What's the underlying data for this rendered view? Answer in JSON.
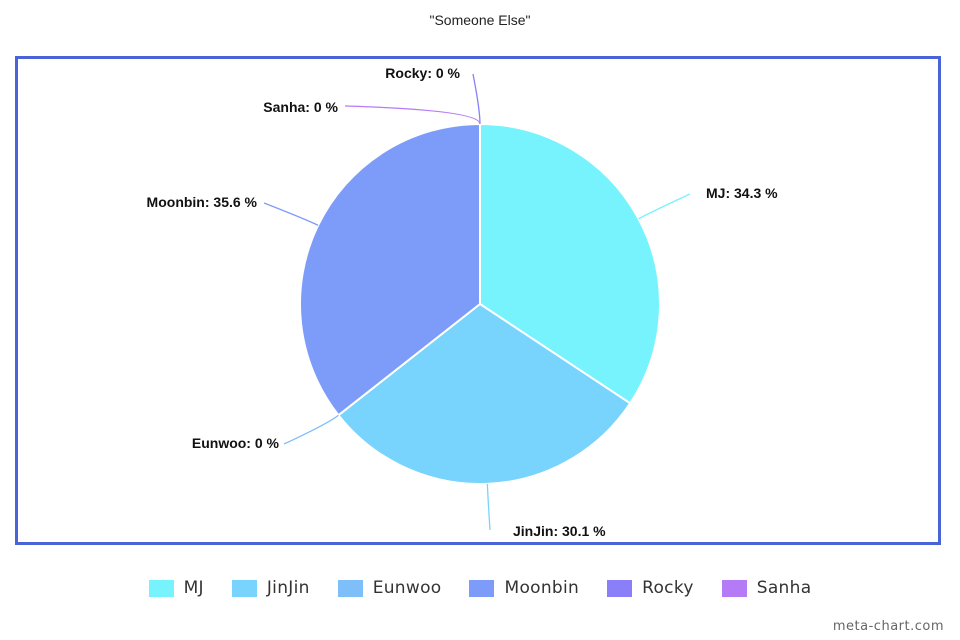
{
  "chart_data": {
    "type": "pie",
    "title": "\"Someone Else\"",
    "categories": [
      "MJ",
      "JinJin",
      "Eunwoo",
      "Moonbin",
      "Rocky",
      "Sanha"
    ],
    "values": [
      34.3,
      30.1,
      0,
      35.6,
      0,
      0
    ],
    "data_labels": [
      "MJ: 34.3 %",
      "JinJin: 30.1 %",
      "Eunwoo: 0 %",
      "Moonbin: 35.6 %",
      "Rocky: 0 %",
      "Sanha: 0 %"
    ],
    "colors": [
      "#76f3fc",
      "#78d4fc",
      "#7ebff9",
      "#7d9cfa",
      "#8a7ff8",
      "#b57bf7"
    ],
    "legend_position": "bottom"
  },
  "watermark": "meta-chart.com"
}
